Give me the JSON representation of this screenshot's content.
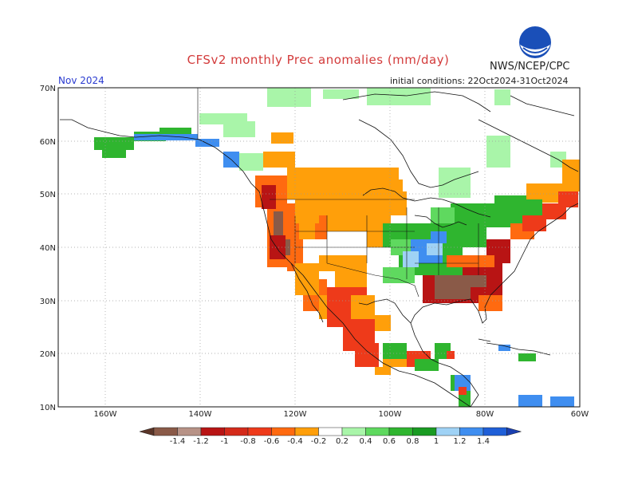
{
  "title": "CFSv2 monthly Prec anomalies (mm/day)",
  "agency": "NWS/NCEP/CPC",
  "logo_text": "NOAA",
  "month": "Nov 2024",
  "initial_conditions": "initial conditions: 22Oct2024-31Oct2024",
  "lat_labels": [
    "70N",
    "60N",
    "50N",
    "40N",
    "30N",
    "20N",
    "10N"
  ],
  "lon_labels": [
    "160W",
    "140W",
    "120W",
    "100W",
    "80W",
    "60W"
  ],
  "colorbar": {
    "labels": [
      "-1.4",
      "-1.2",
      "-1",
      "-0.8",
      "-0.6",
      "-0.4",
      "-0.2",
      "0.2",
      "0.4",
      "0.6",
      "0.8",
      "1",
      "1.2",
      "1.4"
    ],
    "colors": [
      "#8a5a48",
      "#b79286",
      "#b81414",
      "#d42a1a",
      "#ee3a1a",
      "#ff6a10",
      "#ff9f0a",
      "#ffffff",
      "#a9f5a9",
      "#5fd95f",
      "#2fb52f",
      "#199b22",
      "#9fd2f5",
      "#3f8ef0",
      "#1f5fd8"
    ]
  },
  "anomaly_regions": [
    {
      "name": "pacific-northwest-coast",
      "color": "#8a5a48"
    },
    {
      "name": "west-coast-dry",
      "color": "#ff6a10"
    },
    {
      "name": "great-basin-dry",
      "color": "#ff9f0a"
    },
    {
      "name": "northern-plains-dry",
      "color": "#ff9f0a"
    },
    {
      "name": "canada-south-dry",
      "color": "#ff9f0a"
    },
    {
      "name": "mexico-dry",
      "color": "#ee3a1a"
    },
    {
      "name": "southeast-dry",
      "color": "#b81414"
    },
    {
      "name": "georgia-brown",
      "color": "#8a5a48"
    },
    {
      "name": "midwest-wet",
      "color": "#2fb52f"
    },
    {
      "name": "ohio-valley-blue",
      "color": "#3f8ef0"
    },
    {
      "name": "alaska-wet",
      "color": "#2fb52f"
    },
    {
      "name": "canada-north-wet",
      "color": "#5fd95f"
    },
    {
      "name": "northeast-dry",
      "color": "#ee3a1a"
    },
    {
      "name": "central-america-wet",
      "color": "#2fb52f"
    },
    {
      "name": "caribbean-wet",
      "color": "#3f8ef0"
    }
  ]
}
